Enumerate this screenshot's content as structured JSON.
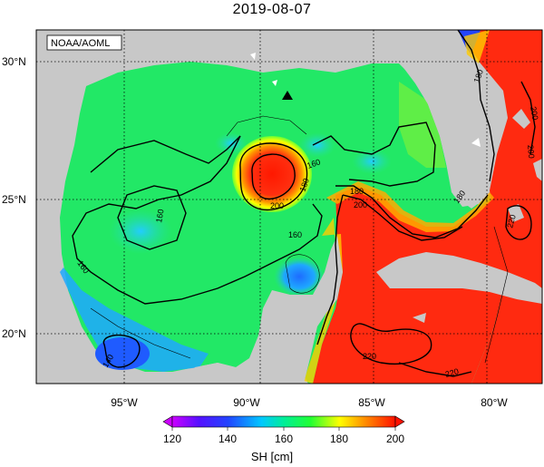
{
  "title": "2019-08-07",
  "attribution": "NOAA/AOML",
  "lat_labels": [
    "30°N",
    "25°N",
    "20°N"
  ],
  "lon_labels": [
    "95°W",
    "90°W",
    "85°W",
    "80°W"
  ],
  "contour_labels": [
    "180",
    "200",
    "160",
    "180",
    "200",
    "160",
    "160",
    "180",
    "200",
    "160",
    "180",
    "220",
    "220",
    "220",
    "200",
    "140"
  ],
  "colorbar": {
    "ticks": [
      "120",
      "140",
      "160",
      "180",
      "200"
    ],
    "label": "SH [cm]",
    "colors": [
      "#cc00ff",
      "#2222ff",
      "#00ccff",
      "#00ff66",
      "#ffff00",
      "#ff8800",
      "#ff2200"
    ]
  },
  "colors": {
    "land": "#c8c8c8",
    "gulf_green": "#22e866",
    "loop_current_red": "#ff2a10"
  },
  "marker_icon": "triangle-icon"
}
